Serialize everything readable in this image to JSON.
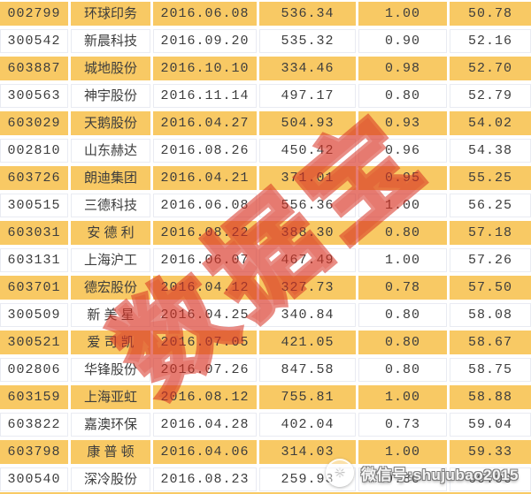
{
  "watermarks": {
    "diagonal_text": "数据宝",
    "wechat_label": "微信号:shujubao2015",
    "logo_glyph": "✳"
  },
  "colors": {
    "row_orange": "#F8C964",
    "row_white": "#FFFFFF",
    "cell_text": "#3D3D3D",
    "watermark_red": "#D73020",
    "wechat_text": "#F4F4F4"
  },
  "chart_data": {
    "type": "table",
    "header_visible": false,
    "first_row_style": "orange",
    "row_alternation": [
      "orange",
      "white"
    ],
    "rows": [
      [
        "002799",
        "环球印务",
        "2016.06.08",
        "536.34",
        "1.00",
        "50.78"
      ],
      [
        "300542",
        "新晨科技",
        "2016.09.20",
        "535.32",
        "0.90",
        "52.16"
      ],
      [
        "603887",
        "城地股份",
        "2016.10.10",
        "334.46",
        "0.98",
        "52.70"
      ],
      [
        "300563",
        "神宇股份",
        "2016.11.14",
        "497.17",
        "0.80",
        "52.79"
      ],
      [
        "603029",
        "天鹅股份",
        "2016.04.27",
        "504.93",
        "0.93",
        "54.02"
      ],
      [
        "002810",
        "山东赫达",
        "2016.08.26",
        "450.42",
        "0.96",
        "54.38"
      ],
      [
        "603726",
        "朗迪集团",
        "2016.04.21",
        "371.01",
        "0.95",
        "55.25"
      ],
      [
        "300515",
        "三德科技",
        "2016.06.08",
        "556.36",
        "1.00",
        "56.25"
      ],
      [
        "603031",
        "安 德 利",
        "2016.08.22",
        "388.30",
        "0.80",
        "57.18"
      ],
      [
        "603131",
        "上海沪工",
        "2016.06.07",
        "467.49",
        "1.00",
        "57.26"
      ],
      [
        "603701",
        "德宏股份",
        "2016.04.12",
        "327.73",
        "0.78",
        "57.50"
      ],
      [
        "300509",
        "新 美 星",
        "2016.04.25",
        "340.84",
        "0.80",
        "58.08"
      ],
      [
        "300521",
        "爱 司 凯",
        "2016.07.05",
        "421.05",
        "0.80",
        "58.67"
      ],
      [
        "002806",
        "华锋股份",
        "2016.07.26",
        "847.58",
        "0.80",
        "58.75"
      ],
      [
        "603159",
        "上海亚虹",
        "2016.08.12",
        "755.81",
        "1.00",
        "58.88"
      ],
      [
        "603822",
        "嘉澳环保",
        "2016.04.28",
        "402.04",
        "0.73",
        "59.04"
      ],
      [
        "603798",
        "康 普 顿",
        "2016.04.06",
        "314.03",
        "1.00",
        "59.33"
      ],
      [
        "300540",
        "深冷股份",
        "2016.08.23",
        "259.93",
        "0.80",
        "60.00"
      ]
    ]
  }
}
